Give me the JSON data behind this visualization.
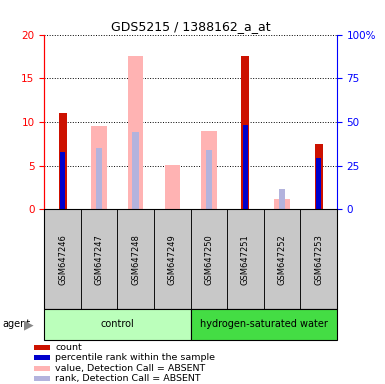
{
  "title": "GDS5215 / 1388162_a_at",
  "samples": [
    "GSM647246",
    "GSM647247",
    "GSM647248",
    "GSM647249",
    "GSM647250",
    "GSM647251",
    "GSM647252",
    "GSM647253"
  ],
  "count_values": [
    11.0,
    null,
    null,
    null,
    null,
    17.5,
    null,
    7.5
  ],
  "rank_values": [
    6.5,
    null,
    null,
    null,
    null,
    9.7,
    null,
    5.9
  ],
  "absent_value_values": [
    null,
    9.5,
    17.5,
    5.1,
    9.0,
    null,
    1.2,
    null
  ],
  "absent_rank_values": [
    null,
    7.0,
    8.8,
    null,
    6.8,
    null,
    2.3,
    null
  ],
  "ylim": [
    0,
    20
  ],
  "y2lim": [
    0,
    100
  ],
  "yticks": [
    0,
    5,
    10,
    15,
    20
  ],
  "y2ticks": [
    0,
    25,
    50,
    75,
    100
  ],
  "y2ticklabels": [
    "0",
    "25",
    "50",
    "75",
    "100%"
  ],
  "bar_color_count": "#cc1100",
  "bar_color_rank": "#0000cc",
  "bar_color_absent_value": "#ffb3b3",
  "bar_color_absent_rank": "#b3b3dd",
  "control_color": "#bbffbb",
  "hydrogen_color": "#44dd44",
  "sample_box_color": "#c8c8c8",
  "agent_label": "agent",
  "legend_items": [
    {
      "color": "#cc1100",
      "label": "count"
    },
    {
      "color": "#0000cc",
      "label": "percentile rank within the sample"
    },
    {
      "color": "#ffb3b3",
      "label": "value, Detection Call = ABSENT"
    },
    {
      "color": "#b3b3dd",
      "label": "rank, Detection Call = ABSENT"
    }
  ]
}
